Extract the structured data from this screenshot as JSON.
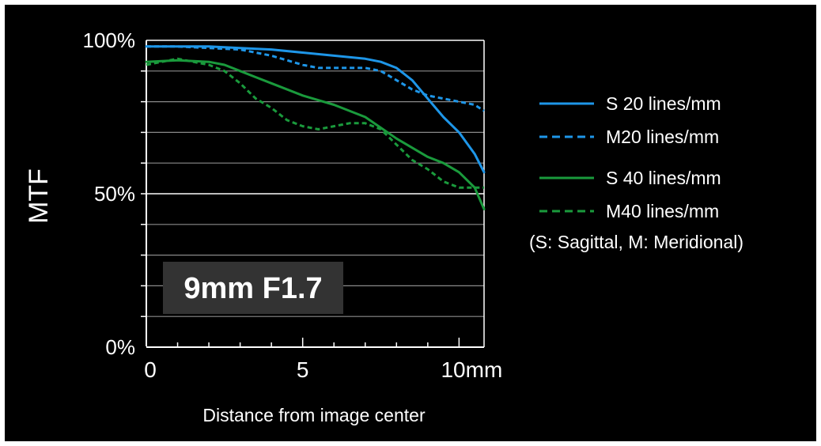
{
  "chart_data": {
    "type": "line",
    "ylabel": "MTF",
    "xlabel": "Distance from image center",
    "x_ticks": [
      {
        "value": 0,
        "label": "0"
      },
      {
        "value": 5,
        "label": "5"
      },
      {
        "value": 10,
        "label": "10mm"
      }
    ],
    "y_ticks": [
      {
        "value": 0,
        "label": "0%"
      },
      {
        "value": 50,
        "label": "50%"
      },
      {
        "value": 100,
        "label": "100%"
      }
    ],
    "xlim": [
      0,
      10.8
    ],
    "ylim": [
      0,
      100
    ],
    "grid": true,
    "legend_position": "right",
    "legend_note": "(S: Sagittal, M: Meridional)",
    "annotation": "9mm F1.7",
    "series": [
      {
        "name": "S 20 lines/mm",
        "color": "#1e96e8",
        "dash": "solid",
        "x": [
          0,
          1,
          2,
          3,
          4,
          5,
          6,
          7,
          7.5,
          8,
          8.5,
          9,
          9.5,
          10,
          10.5,
          10.8
        ],
        "y": [
          98,
          98,
          98,
          97.5,
          97,
          96,
          95,
          94,
          93,
          91,
          87,
          81,
          75,
          70,
          63,
          57
        ]
      },
      {
        "name": "M20 lines/mm",
        "color": "#1e96e8",
        "dash": "dashed",
        "x": [
          0,
          1,
          2,
          3,
          4,
          5,
          5.5,
          6,
          7,
          7.5,
          8,
          8.5,
          9,
          9.5,
          10,
          10.5,
          10.8
        ],
        "y": [
          98,
          98,
          97.5,
          97,
          95,
          92,
          91,
          91,
          91,
          90,
          87,
          84,
          82,
          81,
          80,
          79,
          77
        ]
      },
      {
        "name": "S 40 lines/mm",
        "color": "#1a9a3c",
        "dash": "solid",
        "x": [
          0,
          1,
          2,
          2.5,
          3,
          3.5,
          4,
          5,
          6,
          7,
          8,
          9,
          9.5,
          10,
          10.5,
          10.8
        ],
        "y": [
          93,
          93.5,
          93,
          92,
          90,
          88,
          86,
          82,
          79,
          75,
          68,
          62,
          60,
          57,
          52,
          45
        ]
      },
      {
        "name": "M40 lines/mm",
        "color": "#1a9a3c",
        "dash": "dashed",
        "x": [
          0,
          1,
          2,
          2.5,
          3,
          3.5,
          4,
          4.5,
          5,
          5.5,
          6,
          6.5,
          7,
          7.5,
          8,
          8.5,
          9,
          9.5,
          10,
          10.5,
          10.8
        ],
        "y": [
          92,
          94,
          92,
          90,
          86,
          81,
          78,
          74,
          72,
          71,
          72,
          73,
          73,
          71,
          66,
          61,
          58,
          54,
          52,
          52,
          52
        ]
      }
    ]
  }
}
